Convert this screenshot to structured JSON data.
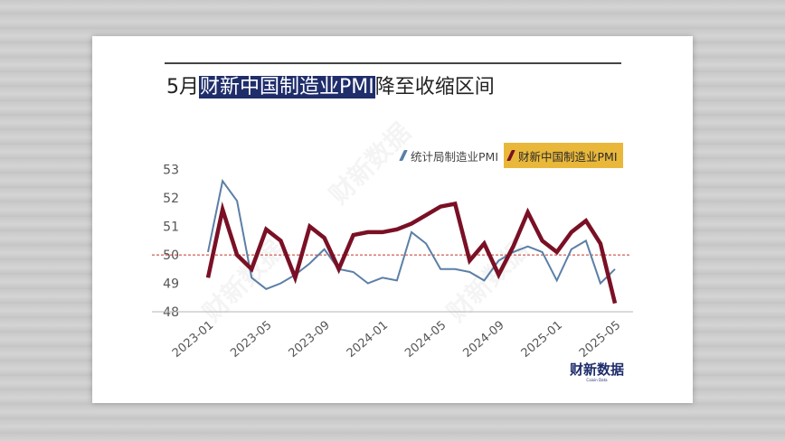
{
  "title": {
    "prefix": "5月",
    "highlight": "财新中国制造业PMI",
    "suffix": "降至收缩区间"
  },
  "watermark": "财新数据",
  "logo": {
    "main": "财新数据",
    "sub": "Caixin Data"
  },
  "colors": {
    "nbs": "#5b7fa6",
    "caixin": "#7a1025",
    "reference": "#c0392b",
    "legend_highlight": "#e9b83a",
    "title_highlight": "#1f2d6b"
  },
  "chart_data": {
    "type": "line",
    "x": [
      "2023-01",
      "2023-02",
      "2023-03",
      "2023-04",
      "2023-05",
      "2023-06",
      "2023-07",
      "2023-08",
      "2023-09",
      "2023-10",
      "2023-11",
      "2023-12",
      "2024-01",
      "2024-02",
      "2024-03",
      "2024-04",
      "2024-05",
      "2024-06",
      "2024-07",
      "2024-08",
      "2024-09",
      "2024-10",
      "2024-11",
      "2024-12",
      "2025-01",
      "2025-02",
      "2025-03",
      "2025-04",
      "2025-05"
    ],
    "x_tick_labels": [
      "2023-01",
      "2023-05",
      "2023-09",
      "2024-01",
      "2024-05",
      "2024-09",
      "2025-01",
      "2025-05"
    ],
    "y_tick_labels": [
      "48",
      "49",
      "50",
      "51",
      "52",
      "53"
    ],
    "ylim": [
      48,
      53.5
    ],
    "reference_line": 50,
    "legend_position": "top-right",
    "series": [
      {
        "name": "统计局制造业PMI",
        "values": [
          50.1,
          52.6,
          51.9,
          49.2,
          48.8,
          49.0,
          49.3,
          49.7,
          50.2,
          49.5,
          49.4,
          49.0,
          49.2,
          49.1,
          50.8,
          50.4,
          49.5,
          49.5,
          49.4,
          49.1,
          49.8,
          50.1,
          50.3,
          50.1,
          49.1,
          50.2,
          50.5,
          49.0,
          49.5
        ]
      },
      {
        "name": "财新中国制造业PMI",
        "values": [
          49.2,
          51.6,
          50.0,
          49.5,
          50.9,
          50.5,
          49.2,
          51.0,
          50.6,
          49.5,
          50.7,
          50.8,
          50.8,
          50.9,
          51.1,
          51.4,
          51.7,
          51.8,
          49.8,
          50.4,
          49.3,
          50.3,
          51.5,
          50.5,
          50.1,
          50.8,
          51.2,
          50.4,
          48.3
        ]
      }
    ]
  }
}
